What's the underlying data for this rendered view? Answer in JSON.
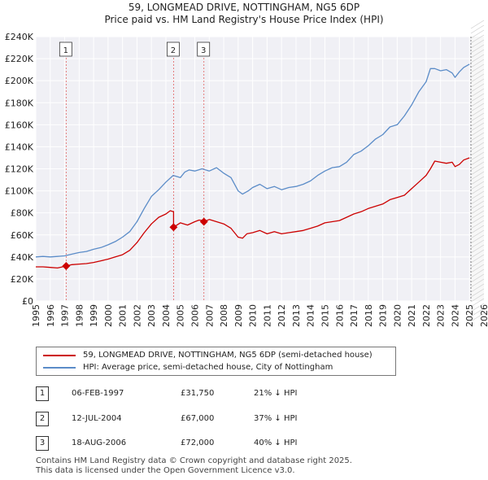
{
  "title": {
    "line1": "59, LONGMEAD DRIVE, NOTTINGHAM, NG5 6DP",
    "line2": "Price paid vs. HM Land Registry's House Price Index (HPI)"
  },
  "chart_data": {
    "type": "line",
    "xlim": [
      1995,
      2026
    ],
    "ylim": [
      0,
      240000
    ],
    "y_ticks": [
      0,
      20000,
      40000,
      60000,
      80000,
      100000,
      120000,
      140000,
      160000,
      180000,
      200000,
      220000,
      240000
    ],
    "y_tick_labels": [
      "£0",
      "£20K",
      "£40K",
      "£60K",
      "£80K",
      "£100K",
      "£120K",
      "£140K",
      "£160K",
      "£180K",
      "£200K",
      "£220K",
      "£240K"
    ],
    "x_ticks": [
      1995,
      1996,
      1997,
      1998,
      1999,
      2000,
      2001,
      2002,
      2003,
      2004,
      2005,
      2006,
      2007,
      2008,
      2009,
      2010,
      2011,
      2012,
      2013,
      2014,
      2015,
      2016,
      2017,
      2018,
      2019,
      2020,
      2021,
      2022,
      2023,
      2024,
      2025,
      2026
    ],
    "x_tick_labels": [
      "1995",
      "1996",
      "1997",
      "1998",
      "1999",
      "2000",
      "2001",
      "2002",
      "2003",
      "2004",
      "2005",
      "2006",
      "2007",
      "2008",
      "2009",
      "2010",
      "2011",
      "2012",
      "2013",
      "2014",
      "2015",
      "2016",
      "2017",
      "2018",
      "2019",
      "2020",
      "2021",
      "2022",
      "2023",
      "2024",
      "2025",
      "2026"
    ],
    "grid": true,
    "forecast_from": 2025.1,
    "series": [
      {
        "name": "59, LONGMEAD DRIVE, NOTTINGHAM, NG5 6DP (semi-detached house)",
        "color": "#cc0000",
        "x": [
          1995.0,
          1995.5,
          1996.0,
          1996.5,
          1997.1,
          1997.5,
          1998.0,
          1998.5,
          1999.0,
          1999.5,
          2000.0,
          2000.5,
          2001.0,
          2001.5,
          2002.0,
          2002.5,
          2003.0,
          2003.5,
          2004.0,
          2004.3,
          2004.53,
          2004.53,
          2005.0,
          2005.5,
          2006.0,
          2006.3,
          2006.63,
          2006.63,
          2007.0,
          2007.5,
          2008.0,
          2008.5,
          2009.0,
          2009.3,
          2009.6,
          2010.0,
          2010.5,
          2011.0,
          2011.5,
          2012.0,
          2012.5,
          2013.0,
          2013.5,
          2014.0,
          2014.5,
          2015.0,
          2015.5,
          2016.0,
          2016.5,
          2017.0,
          2017.5,
          2018.0,
          2018.5,
          2019.0,
          2019.5,
          2020.0,
          2020.5,
          2021.0,
          2021.5,
          2022.0,
          2022.3,
          2022.6,
          2023.0,
          2023.4,
          2023.8,
          2024.0,
          2024.3,
          2024.6,
          2025.0
        ],
        "values": [
          31000,
          31000,
          30500,
          30000,
          31750,
          33000,
          33500,
          34000,
          35000,
          36500,
          38000,
          40000,
          42000,
          46000,
          53000,
          62000,
          70000,
          76000,
          79000,
          82000,
          81000,
          67000,
          71000,
          69000,
          72000,
          73500,
          73000,
          72000,
          74000,
          72000,
          70000,
          66000,
          58000,
          57000,
          61000,
          62000,
          64000,
          61000,
          63000,
          61000,
          62000,
          63000,
          64000,
          66000,
          68000,
          71000,
          72000,
          73000,
          76000,
          79000,
          81000,
          84000,
          86000,
          88000,
          92000,
          94000,
          96000,
          102000,
          108000,
          114000,
          120000,
          127000,
          126000,
          125000,
          126000,
          122000,
          124000,
          128000,
          130000
        ]
      },
      {
        "name": "HPI: Average price, semi-detached house, City of Nottingham",
        "color": "#5b8cc8",
        "x": [
          1995.0,
          1995.5,
          1996.0,
          1996.5,
          1997.0,
          1997.5,
          1998.0,
          1998.5,
          1999.0,
          1999.5,
          2000.0,
          2000.5,
          2001.0,
          2001.5,
          2002.0,
          2002.5,
          2003.0,
          2003.5,
          2004.0,
          2004.5,
          2005.0,
          2005.3,
          2005.6,
          2006.0,
          2006.5,
          2007.0,
          2007.5,
          2008.0,
          2008.5,
          2009.0,
          2009.3,
          2009.7,
          2010.0,
          2010.5,
          2011.0,
          2011.5,
          2012.0,
          2012.5,
          2013.0,
          2013.5,
          2014.0,
          2014.5,
          2015.0,
          2015.5,
          2016.0,
          2016.5,
          2017.0,
          2017.5,
          2018.0,
          2018.5,
          2019.0,
          2019.5,
          2020.0,
          2020.5,
          2021.0,
          2021.5,
          2022.0,
          2022.3,
          2022.6,
          2023.0,
          2023.4,
          2023.8,
          2024.0,
          2024.3,
          2024.6,
          2025.0
        ],
        "values": [
          40000,
          40500,
          40000,
          40500,
          41000,
          42500,
          44000,
          45000,
          47000,
          48500,
          51000,
          54000,
          58000,
          63000,
          72000,
          84000,
          95000,
          101000,
          108000,
          114000,
          112000,
          117000,
          119000,
          118000,
          120000,
          118000,
          121000,
          116000,
          112000,
          100000,
          97000,
          100000,
          103000,
          106000,
          102000,
          104000,
          101000,
          103000,
          104000,
          106000,
          109000,
          114000,
          118000,
          121000,
          122000,
          126000,
          133000,
          136000,
          141000,
          147000,
          151000,
          158000,
          160000,
          168000,
          178000,
          190000,
          199000,
          211000,
          211000,
          209000,
          210000,
          207000,
          203000,
          208000,
          212000,
          215000
        ]
      }
    ],
    "sales": [
      {
        "marker": "1",
        "x": 1997.1,
        "value": 31750
      },
      {
        "marker": "2",
        "x": 2004.53,
        "value": 67000
      },
      {
        "marker": "3",
        "x": 2006.63,
        "value": 72000
      }
    ]
  },
  "legend": {
    "property_label": "59, LONGMEAD DRIVE, NOTTINGHAM, NG5 6DP (semi-detached house)",
    "hpi_label": "HPI: Average price, semi-detached house, City of Nottingham"
  },
  "sales_table": [
    {
      "num": "1",
      "date": "06-FEB-1997",
      "price": "£31,750",
      "hpi": "21% ↓ HPI"
    },
    {
      "num": "2",
      "date": "12-JUL-2004",
      "price": "£67,000",
      "hpi": "37% ↓ HPI"
    },
    {
      "num": "3",
      "date": "18-AUG-2006",
      "price": "£72,000",
      "hpi": "40% ↓ HPI"
    }
  ],
  "footer": {
    "line1": "Contains HM Land Registry data © Crown copyright and database right 2025.",
    "line2": "This data is licensed under the Open Government Licence v3.0."
  },
  "colors": {
    "property": "#cc0000",
    "hpi": "#5b8cc8",
    "grid": "#dddddd",
    "plot_background": "#f0f0f5"
  }
}
